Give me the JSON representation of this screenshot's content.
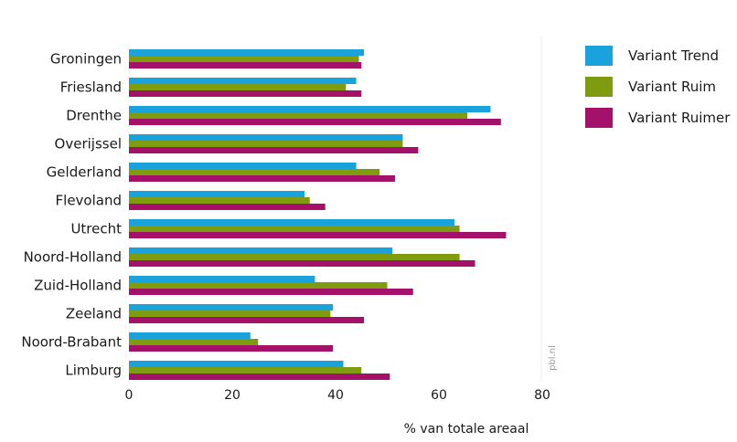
{
  "chart_data": {
    "type": "bar",
    "orientation": "horizontal",
    "categories": [
      "Groningen",
      "Friesland",
      "Drenthe",
      "Overijssel",
      "Gelderland",
      "Flevoland",
      "Utrecht",
      "Noord-Holland",
      "Zuid-Holland",
      "Zeeland",
      "Noord-Brabant",
      "Limburg"
    ],
    "series": [
      {
        "name": "Variant Trend",
        "color": "#1aa2dc",
        "values": [
          45.5,
          44,
          70,
          53,
          44,
          34,
          63,
          51,
          36,
          39.5,
          23.5,
          41.5
        ]
      },
      {
        "name": "Variant Ruim",
        "color": "#7f9b0f",
        "values": [
          44.5,
          42,
          65.5,
          53,
          48.5,
          35,
          64,
          64,
          50,
          39,
          25,
          45
        ]
      },
      {
        "name": "Variant Ruimer",
        "color": "#a3116b",
        "values": [
          45,
          45,
          72,
          56,
          51.5,
          38,
          73,
          67,
          55,
          45.5,
          39.5,
          50.5
        ]
      }
    ],
    "xlim": [
      0,
      80
    ],
    "xticks": [
      "0",
      "20",
      "40",
      "60",
      "80"
    ],
    "xlabel": "% van totale areaal",
    "ylabel": "",
    "title": "",
    "grid": false,
    "legend_position": "top-right",
    "watermark": "pbl.nl"
  }
}
